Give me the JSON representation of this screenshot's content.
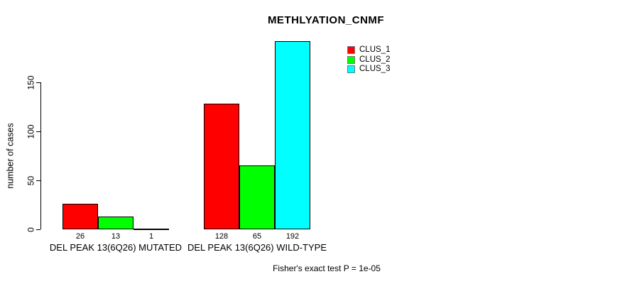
{
  "chart_data": {
    "type": "bar",
    "title": "METHLYATION_CNMF",
    "ylabel": "number of cases",
    "yticks": [
      0,
      50,
      100,
      150
    ],
    "ylim": [
      0,
      192
    ],
    "grid": false,
    "legend_position": "top-right",
    "categories": [
      "DEL PEAK 13(6Q26) MUTATED",
      "DEL PEAK 13(6Q26) WILD-TYPE"
    ],
    "series": [
      {
        "name": "CLUS_1",
        "color": "#ff0000",
        "values": [
          26,
          128
        ]
      },
      {
        "name": "CLUS_2",
        "color": "#00ff00",
        "values": [
          13,
          65
        ]
      },
      {
        "name": "CLUS_3",
        "color": "#00ffff",
        "values": [
          1,
          192
        ]
      }
    ],
    "footnote": "Fisher's exact test P = 1e-05"
  }
}
